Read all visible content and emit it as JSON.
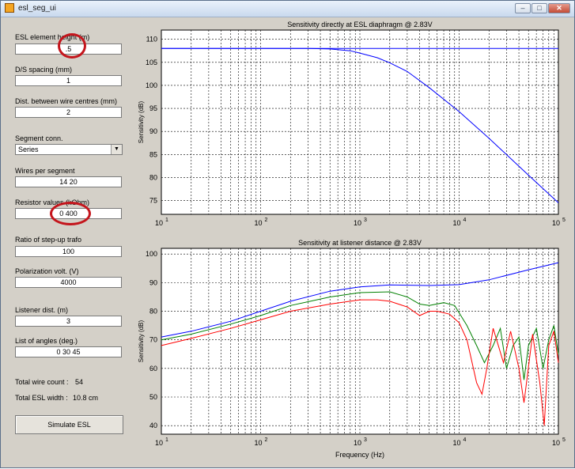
{
  "window": {
    "title": "esl_seg_ui",
    "min_glyph": "–",
    "max_glyph": "□",
    "close_glyph": "✕"
  },
  "form": {
    "element_height_label": "ESL element height (m)",
    "element_height_value": ".5",
    "ds_spacing_label": "D/S spacing (mm)",
    "ds_spacing_value": "1",
    "wire_dist_label": "Dist. between wire centres (mm)",
    "wire_dist_value": "2",
    "segment_conn_label": "Segment conn.",
    "segment_conn_value": "Series",
    "wires_per_segment_label": "Wires per segment",
    "wires_per_segment_value": "14 20",
    "resistor_label": "Resistor values (kOhm)",
    "resistor_value": "0 400",
    "trafo_label": "Ratio of step-up trafo",
    "trafo_value": "100",
    "polarization_label": "Polarization volt. (V)",
    "polarization_value": "4000",
    "listener_label": "Listener dist. (m)",
    "listener_value": "3",
    "angles_label": "List of angles (deg.)",
    "angles_value": "0 30 45",
    "total_wire_label": "Total wire count :",
    "total_wire_value": "54",
    "total_width_label": "Total ESL width :",
    "total_width_value": "10.8 cm",
    "simulate_label": "Simulate ESL"
  },
  "chart_data": [
    {
      "type": "line",
      "title": "Sensitivity directly at ESL diaphragm @ 2.83V",
      "xlabel": "",
      "ylabel": "Sensitivity (dB)",
      "xscale": "log",
      "xlim": [
        10,
        100000
      ],
      "ylim": [
        72,
        112
      ],
      "yticks": [
        75,
        80,
        85,
        90,
        95,
        100,
        105,
        110
      ],
      "xticks": [
        "10^1",
        "10^2",
        "10^3",
        "10^4",
        "10^5"
      ],
      "grid": true,
      "series": [
        {
          "color": "#0000ff",
          "points": [
            [
              10,
              108
            ],
            [
              300,
              108
            ],
            [
              500,
              107.9
            ],
            [
              800,
              107.5
            ],
            [
              1000,
              107
            ],
            [
              1500,
              106
            ],
            [
              2000,
              104.9
            ],
            [
              3000,
              103
            ],
            [
              5000,
              99.5
            ],
            [
              10000,
              94.3
            ],
            [
              20000,
              88.5
            ],
            [
              50000,
              80.5
            ],
            [
              100000,
              74.5
            ]
          ]
        },
        {
          "color": "#0000ff",
          "points": [
            [
              10,
              108
            ],
            [
              100000,
              108
            ]
          ]
        }
      ]
    },
    {
      "type": "line",
      "title": "Sensitivity at listener distance @ 2.83V",
      "xlabel": "Frequency (Hz)",
      "ylabel": "Sensitivity (dB)",
      "xscale": "log",
      "xlim": [
        10,
        100000
      ],
      "ylim": [
        37,
        102
      ],
      "yticks": [
        40,
        50,
        60,
        70,
        80,
        90,
        100
      ],
      "xticks": [
        "10^1",
        "10^2",
        "10^3",
        "10^4",
        "10^5"
      ],
      "grid": true,
      "series": [
        {
          "color": "#0000ff",
          "points": [
            [
              10,
              71
            ],
            [
              20,
              73
            ],
            [
              50,
              76.5
            ],
            [
              100,
              80
            ],
            [
              200,
              83.5
            ],
            [
              500,
              87
            ],
            [
              1000,
              88.5
            ],
            [
              2000,
              89.2
            ],
            [
              5000,
              89
            ],
            [
              10000,
              89.3
            ],
            [
              20000,
              91
            ],
            [
              50000,
              94.5
            ],
            [
              100000,
              97
            ]
          ]
        },
        {
          "color": "#008000",
          "points": [
            [
              10,
              70
            ],
            [
              20,
              72
            ],
            [
              50,
              75.5
            ],
            [
              100,
              78.5
            ],
            [
              200,
              82
            ],
            [
              500,
              85
            ],
            [
              1000,
              86.5
            ],
            [
              2000,
              86.8
            ],
            [
              3000,
              85
            ],
            [
              4000,
              82.5
            ],
            [
              5000,
              82
            ],
            [
              7000,
              83
            ],
            [
              9000,
              82
            ],
            [
              12000,
              75
            ],
            [
              15000,
              68
            ],
            [
              18000,
              62
            ],
            [
              22000,
              68
            ],
            [
              26000,
              74
            ],
            [
              30000,
              60
            ],
            [
              35000,
              68
            ],
            [
              40000,
              71
            ],
            [
              45000,
              56
            ],
            [
              50000,
              68
            ],
            [
              60000,
              74
            ],
            [
              70000,
              60
            ],
            [
              80000,
              70
            ],
            [
              90000,
              75
            ],
            [
              100000,
              65
            ]
          ]
        },
        {
          "color": "#ff0000",
          "points": [
            [
              10,
              68
            ],
            [
              20,
              70.5
            ],
            [
              50,
              74
            ],
            [
              100,
              77
            ],
            [
              200,
              80
            ],
            [
              500,
              82.5
            ],
            [
              1000,
              84
            ],
            [
              1500,
              84
            ],
            [
              2000,
              83.5
            ],
            [
              3000,
              81.5
            ],
            [
              4000,
              78.5
            ],
            [
              5000,
              80
            ],
            [
              6000,
              80
            ],
            [
              8000,
              79
            ],
            [
              10000,
              76
            ],
            [
              12000,
              70
            ],
            [
              15000,
              55
            ],
            [
              17000,
              51
            ],
            [
              19000,
              60
            ],
            [
              22000,
              74
            ],
            [
              28000,
              62
            ],
            [
              33000,
              73
            ],
            [
              40000,
              60
            ],
            [
              45000,
              48
            ],
            [
              55000,
              72
            ],
            [
              65000,
              55
            ],
            [
              72000,
              40
            ],
            [
              80000,
              68
            ],
            [
              90000,
              73
            ],
            [
              100000,
              62
            ]
          ]
        }
      ]
    }
  ]
}
